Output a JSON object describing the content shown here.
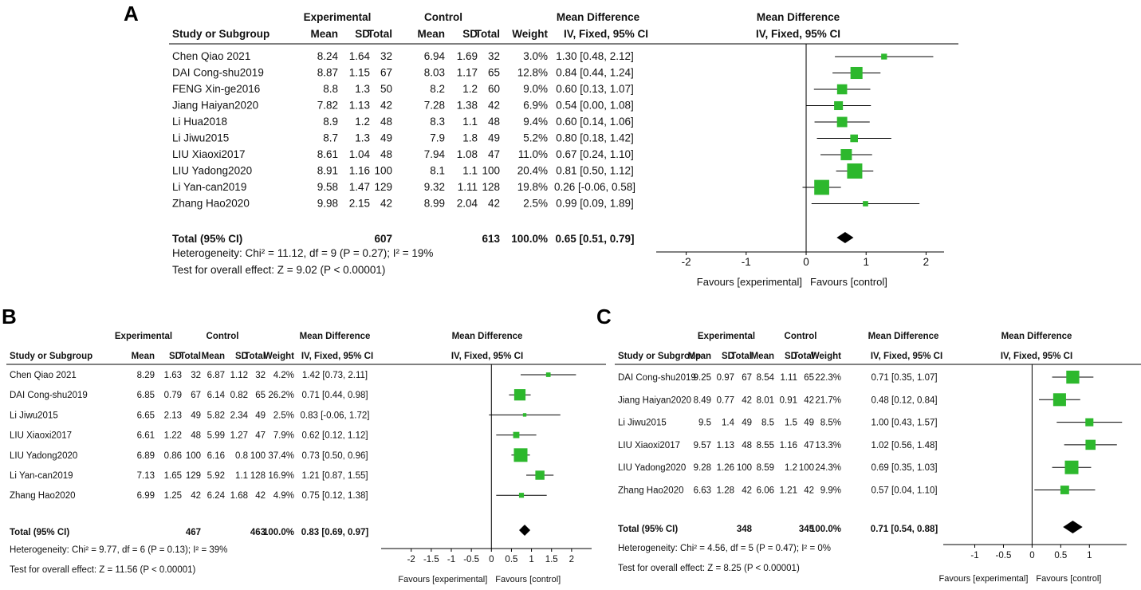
{
  "panels": [
    {
      "letter": "A",
      "header": {
        "experimental": "Experimental",
        "control": "Control",
        "mean_difference": "Mean Difference",
        "plot_title": "Mean Difference",
        "plot_subtitle": "IV, Fixed, 95% CI"
      },
      "columns": [
        "Study or Subgroup",
        "Mean",
        "SD",
        "Total",
        "Mean",
        "SD",
        "Total",
        "Weight",
        "IV, Fixed, 95% CI"
      ],
      "studies": [
        {
          "name": "Chen Qiao 2021",
          "e_mean": "8.24",
          "e_sd": "1.64",
          "e_total": "32",
          "c_mean": "6.94",
          "c_sd": "1.69",
          "c_total": "32",
          "weight": "3.0%",
          "ci_text": "1.30 [0.48, 2.12]",
          "md": 1.3,
          "lo": 0.48,
          "hi": 2.12,
          "w": 3.0
        },
        {
          "name": "DAI Cong-shu2019",
          "e_mean": "8.87",
          "e_sd": "1.15",
          "e_total": "67",
          "c_mean": "8.03",
          "c_sd": "1.17",
          "c_total": "65",
          "weight": "12.8%",
          "ci_text": "0.84 [0.44, 1.24]",
          "md": 0.84,
          "lo": 0.44,
          "hi": 1.24,
          "w": 12.8
        },
        {
          "name": "FENG Xin-ge2016",
          "e_mean": "8.8",
          "e_sd": "1.3",
          "e_total": "50",
          "c_mean": "8.2",
          "c_sd": "1.2",
          "c_total": "60",
          "weight": "9.0%",
          "ci_text": "0.60 [0.13, 1.07]",
          "md": 0.6,
          "lo": 0.13,
          "hi": 1.07,
          "w": 9.0
        },
        {
          "name": "Jiang Haiyan2020",
          "e_mean": "7.82",
          "e_sd": "1.13",
          "e_total": "42",
          "c_mean": "7.28",
          "c_sd": "1.38",
          "c_total": "42",
          "weight": "6.9%",
          "ci_text": "0.54 [0.00, 1.08]",
          "md": 0.54,
          "lo": 0.0,
          "hi": 1.08,
          "w": 6.9
        },
        {
          "name": "Li Hua2018",
          "e_mean": "8.9",
          "e_sd": "1.2",
          "e_total": "48",
          "c_mean": "8.3",
          "c_sd": "1.1",
          "c_total": "48",
          "weight": "9.4%",
          "ci_text": "0.60 [0.14, 1.06]",
          "md": 0.6,
          "lo": 0.14,
          "hi": 1.06,
          "w": 9.4
        },
        {
          "name": "Li Jiwu2015",
          "e_mean": "8.7",
          "e_sd": "1.3",
          "e_total": "49",
          "c_mean": "7.9",
          "c_sd": "1.8",
          "c_total": "49",
          "weight": "5.2%",
          "ci_text": "0.80 [0.18, 1.42]",
          "md": 0.8,
          "lo": 0.18,
          "hi": 1.42,
          "w": 5.2
        },
        {
          "name": "LIU Xiaoxi2017",
          "e_mean": "8.61",
          "e_sd": "1.04",
          "e_total": "48",
          "c_mean": "7.94",
          "c_sd": "1.08",
          "c_total": "47",
          "weight": "11.0%",
          "ci_text": "0.67 [0.24, 1.10]",
          "md": 0.67,
          "lo": 0.24,
          "hi": 1.1,
          "w": 11.0
        },
        {
          "name": "LIU Yadong2020",
          "e_mean": "8.91",
          "e_sd": "1.16",
          "e_total": "100",
          "c_mean": "8.1",
          "c_sd": "1.1",
          "c_total": "100",
          "weight": "20.4%",
          "ci_text": "0.81 [0.50, 1.12]",
          "md": 0.81,
          "lo": 0.5,
          "hi": 1.12,
          "w": 20.4
        },
        {
          "name": "Li Yan-can2019",
          "e_mean": "9.58",
          "e_sd": "1.47",
          "e_total": "129",
          "c_mean": "9.32",
          "c_sd": "1.11",
          "c_total": "128",
          "weight": "19.8%",
          "ci_text": "0.26 [-0.06, 0.58]",
          "md": 0.26,
          "lo": -0.06,
          "hi": 0.58,
          "w": 19.8
        },
        {
          "name": "Zhang Hao2020",
          "e_mean": "9.98",
          "e_sd": "2.15",
          "e_total": "42",
          "c_mean": "8.99",
          "c_sd": "2.04",
          "c_total": "42",
          "weight": "2.5%",
          "ci_text": "0.99 [0.09, 1.89]",
          "md": 0.99,
          "lo": 0.09,
          "hi": 1.89,
          "w": 2.5
        }
      ],
      "total": {
        "label": "Total (95% CI)",
        "e_total": "607",
        "c_total": "613",
        "weight": "100.0%",
        "ci_text": "0.65 [0.51, 0.79]",
        "md": 0.65,
        "lo": 0.51,
        "hi": 0.79
      },
      "heterogeneity": "Heterogeneity: Chi² = 11.12, df = 9 (P = 0.27); I² = 19%",
      "overall_effect": "Test for overall effect: Z = 9.02 (P < 0.00001)",
      "axis": {
        "min": -2.5,
        "max": 2.3,
        "ticks": [
          -2,
          -1,
          0,
          1,
          2
        ],
        "tick_labels": [
          "-2",
          "-1",
          "0",
          "1",
          "2"
        ]
      },
      "favours_left": "Favours [experimental]",
      "favours_right": "Favours [control]"
    },
    {
      "letter": "B",
      "header": {
        "experimental": "Experimental",
        "control": "Control",
        "mean_difference": "Mean Difference",
        "plot_title": "Mean Difference",
        "plot_subtitle": "IV, Fixed, 95% CI"
      },
      "columns": [
        "Study or Subgroup",
        "Mean",
        "SD",
        "Total",
        "Mean",
        "SD",
        "Total",
        "Weight",
        "IV, Fixed, 95% CI"
      ],
      "studies": [
        {
          "name": "Chen Qiao 2021",
          "e_mean": "8.29",
          "e_sd": "1.63",
          "e_total": "32",
          "c_mean": "6.87",
          "c_sd": "1.12",
          "c_total": "32",
          "weight": "4.2%",
          "ci_text": "1.42 [0.73, 2.11]",
          "md": 1.42,
          "lo": 0.73,
          "hi": 2.11,
          "w": 4.2
        },
        {
          "name": "DAI Cong-shu2019",
          "e_mean": "6.85",
          "e_sd": "0.79",
          "e_total": "67",
          "c_mean": "6.14",
          "c_sd": "0.82",
          "c_total": "65",
          "weight": "26.2%",
          "ci_text": "0.71 [0.44, 0.98]",
          "md": 0.71,
          "lo": 0.44,
          "hi": 0.98,
          "w": 26.2
        },
        {
          "name": "Li Jiwu2015",
          "e_mean": "6.65",
          "e_sd": "2.13",
          "e_total": "49",
          "c_mean": "5.82",
          "c_sd": "2.34",
          "c_total": "49",
          "weight": "2.5%",
          "ci_text": "0.83 [-0.06, 1.72]",
          "md": 0.83,
          "lo": -0.06,
          "hi": 1.72,
          "w": 2.5
        },
        {
          "name": "LIU Xiaoxi2017",
          "e_mean": "6.61",
          "e_sd": "1.22",
          "e_total": "48",
          "c_mean": "5.99",
          "c_sd": "1.27",
          "c_total": "47",
          "weight": "7.9%",
          "ci_text": "0.62 [0.12, 1.12]",
          "md": 0.62,
          "lo": 0.12,
          "hi": 1.12,
          "w": 7.9
        },
        {
          "name": "LIU Yadong2020",
          "e_mean": "6.89",
          "e_sd": "0.86",
          "e_total": "100",
          "c_mean": "6.16",
          "c_sd": "0.8",
          "c_total": "100",
          "weight": "37.4%",
          "ci_text": "0.73 [0.50, 0.96]",
          "md": 0.73,
          "lo": 0.5,
          "hi": 0.96,
          "w": 37.4
        },
        {
          "name": "Li Yan-can2019",
          "e_mean": "7.13",
          "e_sd": "1.65",
          "e_total": "129",
          "c_mean": "5.92",
          "c_sd": "1.1",
          "c_total": "128",
          "weight": "16.9%",
          "ci_text": "1.21 [0.87, 1.55]",
          "md": 1.21,
          "lo": 0.87,
          "hi": 1.55,
          "w": 16.9
        },
        {
          "name": "Zhang Hao2020",
          "e_mean": "6.99",
          "e_sd": "1.25",
          "e_total": "42",
          "c_mean": "6.24",
          "c_sd": "1.68",
          "c_total": "42",
          "weight": "4.9%",
          "ci_text": "0.75 [0.12, 1.38]",
          "md": 0.75,
          "lo": 0.12,
          "hi": 1.38,
          "w": 4.9
        }
      ],
      "total": {
        "label": "Total (95% CI)",
        "e_total": "467",
        "c_total": "463",
        "weight": "100.0%",
        "ci_text": "0.83 [0.69, 0.97]",
        "md": 0.83,
        "lo": 0.69,
        "hi": 0.97
      },
      "heterogeneity": "Heterogeneity: Chi² = 9.77, df = 6 (P = 0.13); I² = 39%",
      "overall_effect": "Test for overall effect: Z = 11.56 (P < 0.00001)",
      "axis": {
        "min": -2.75,
        "max": 2.5,
        "ticks": [
          -2,
          -1.5,
          -1,
          -0.5,
          0,
          0.5,
          1,
          1.5,
          2
        ],
        "tick_labels": [
          "-2",
          "-1.5",
          "-1",
          "-0.5",
          "0",
          "0.5",
          "1",
          "1.5",
          "2"
        ]
      },
      "favours_left": "Favours [experimental]",
      "favours_right": "Favours [control]"
    },
    {
      "letter": "C",
      "header": {
        "experimental": "Experimental",
        "control": "Control",
        "mean_difference": "Mean Difference",
        "plot_title": "Mean Difference",
        "plot_subtitle": "IV, Fixed, 95% CI"
      },
      "columns": [
        "Study or Subgroup",
        "Mean",
        "SD",
        "Total",
        "Mean",
        "SD",
        "Total",
        "Weight",
        "IV, Fixed, 95% CI"
      ],
      "studies": [
        {
          "name": "DAI Cong-shu2019",
          "e_mean": "9.25",
          "e_sd": "0.97",
          "e_total": "67",
          "c_mean": "8.54",
          "c_sd": "1.11",
          "c_total": "65",
          "weight": "22.3%",
          "ci_text": "0.71 [0.35, 1.07]",
          "md": 0.71,
          "lo": 0.35,
          "hi": 1.07,
          "w": 22.3
        },
        {
          "name": "Jiang Haiyan2020",
          "e_mean": "8.49",
          "e_sd": "0.77",
          "e_total": "42",
          "c_mean": "8.01",
          "c_sd": "0.91",
          "c_total": "42",
          "weight": "21.7%",
          "ci_text": "0.48 [0.12, 0.84]",
          "md": 0.48,
          "lo": 0.12,
          "hi": 0.84,
          "w": 21.7
        },
        {
          "name": "Li Jiwu2015",
          "e_mean": "9.5",
          "e_sd": "1.4",
          "e_total": "49",
          "c_mean": "8.5",
          "c_sd": "1.5",
          "c_total": "49",
          "weight": "8.5%",
          "ci_text": "1.00 [0.43, 1.57]",
          "md": 1.0,
          "lo": 0.43,
          "hi": 1.57,
          "w": 8.5
        },
        {
          "name": "LIU Xiaoxi2017",
          "e_mean": "9.57",
          "e_sd": "1.13",
          "e_total": "48",
          "c_mean": "8.55",
          "c_sd": "1.16",
          "c_total": "47",
          "weight": "13.3%",
          "ci_text": "1.02 [0.56, 1.48]",
          "md": 1.02,
          "lo": 0.56,
          "hi": 1.48,
          "w": 13.3
        },
        {
          "name": "LIU Yadong2020",
          "e_mean": "9.28",
          "e_sd": "1.26",
          "e_total": "100",
          "c_mean": "8.59",
          "c_sd": "1.2",
          "c_total": "100",
          "weight": "24.3%",
          "ci_text": "0.69 [0.35, 1.03]",
          "md": 0.69,
          "lo": 0.35,
          "hi": 1.03,
          "w": 24.3
        },
        {
          "name": "Zhang Hao2020",
          "e_mean": "6.63",
          "e_sd": "1.28",
          "e_total": "42",
          "c_mean": "6.06",
          "c_sd": "1.21",
          "c_total": "42",
          "weight": "9.9%",
          "ci_text": "0.57 [0.04, 1.10]",
          "md": 0.57,
          "lo": 0.04,
          "hi": 1.1,
          "w": 9.9
        }
      ],
      "total": {
        "label": "Total (95% CI)",
        "e_total": "348",
        "c_total": "345",
        "weight": "100.0%",
        "ci_text": "0.71 [0.54, 0.88]",
        "md": 0.71,
        "lo": 0.54,
        "hi": 0.88
      },
      "heterogeneity": "Heterogeneity: Chi² = 4.56, df = 5 (P = 0.47); I² = 0%",
      "overall_effect": "Test for overall effect: Z = 8.25 (P < 0.00001)",
      "axis": {
        "min": -1.55,
        "max": 1.65,
        "ticks": [
          -1,
          -0.5,
          0,
          0.5,
          1
        ],
        "tick_labels": [
          "-1",
          "-0.5",
          "0",
          "0.5",
          "1"
        ]
      },
      "favours_left": "Favours [experimental]",
      "favours_right": "Favours [control]"
    }
  ],
  "chart_data": [
    {
      "type": "forest",
      "title": "A",
      "x_label": "Mean Difference IV, Fixed, 95% CI",
      "categories": [
        "Chen Qiao 2021",
        "DAI Cong-shu2019",
        "FENG Xin-ge2016",
        "Jiang Haiyan2020",
        "Li Hua2018",
        "Li Jiwu2015",
        "LIU Xiaoxi2017",
        "LIU Yadong2020",
        "Li Yan-can2019",
        "Zhang Hao2020"
      ],
      "values": [
        1.3,
        0.84,
        0.6,
        0.54,
        0.6,
        0.8,
        0.67,
        0.81,
        0.26,
        0.99
      ],
      "ci_lower": [
        0.48,
        0.44,
        0.13,
        0.0,
        0.14,
        0.18,
        0.24,
        0.5,
        -0.06,
        0.09
      ],
      "ci_upper": [
        2.12,
        1.24,
        1.07,
        1.08,
        1.06,
        1.42,
        1.1,
        1.12,
        0.58,
        1.89
      ],
      "weights": [
        3.0,
        12.8,
        9.0,
        6.9,
        9.4,
        5.2,
        11.0,
        20.4,
        19.8,
        2.5
      ],
      "pooled": {
        "value": 0.65,
        "ci": [
          0.51,
          0.79
        ]
      },
      "xlim": [
        -2.5,
        2.3
      ]
    },
    {
      "type": "forest",
      "title": "B",
      "x_label": "Mean Difference IV, Fixed, 95% CI",
      "categories": [
        "Chen Qiao 2021",
        "DAI Cong-shu2019",
        "Li Jiwu2015",
        "LIU Xiaoxi2017",
        "LIU Yadong2020",
        "Li Yan-can2019",
        "Zhang Hao2020"
      ],
      "values": [
        1.42,
        0.71,
        0.83,
        0.62,
        0.73,
        1.21,
        0.75
      ],
      "ci_lower": [
        0.73,
        0.44,
        -0.06,
        0.12,
        0.5,
        0.87,
        0.12
      ],
      "ci_upper": [
        2.11,
        0.98,
        1.72,
        1.12,
        0.96,
        1.55,
        1.38
      ],
      "weights": [
        4.2,
        26.2,
        2.5,
        7.9,
        37.4,
        16.9,
        4.9
      ],
      "pooled": {
        "value": 0.83,
        "ci": [
          0.69,
          0.97
        ]
      },
      "xlim": [
        -2.75,
        2.5
      ]
    },
    {
      "type": "forest",
      "title": "C",
      "x_label": "Mean Difference IV, Fixed, 95% CI",
      "categories": [
        "DAI Cong-shu2019",
        "Jiang Haiyan2020",
        "Li Jiwu2015",
        "LIU Xiaoxi2017",
        "LIU Yadong2020",
        "Zhang Hao2020"
      ],
      "values": [
        0.71,
        0.48,
        1.0,
        1.02,
        0.69,
        0.57
      ],
      "ci_lower": [
        0.35,
        0.12,
        0.43,
        0.56,
        0.35,
        0.04
      ],
      "ci_upper": [
        1.07,
        0.84,
        1.57,
        1.48,
        1.03,
        1.1
      ],
      "weights": [
        22.3,
        21.7,
        8.5,
        13.3,
        24.3,
        9.9
      ],
      "pooled": {
        "value": 0.71,
        "ci": [
          0.54,
          0.88
        ]
      },
      "xlim": [
        -1.55,
        1.65
      ]
    }
  ],
  "colors": {
    "square": "#2db82d",
    "diamond": "#000000",
    "line": "#000000",
    "text": "#111111"
  }
}
